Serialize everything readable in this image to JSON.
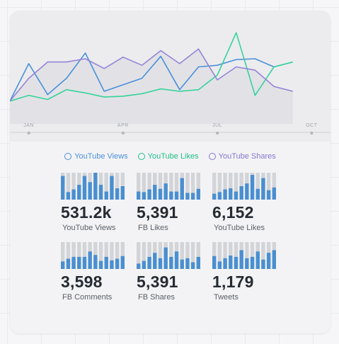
{
  "colors": {
    "views": "#4a90d9",
    "likes": "#35d39a",
    "shares": "#9583d8",
    "bar_fill": "#4a8fd0",
    "bar_track": "#d2d4d8"
  },
  "chart_data": [
    {
      "type": "line",
      "x": [
        0,
        1,
        2,
        3,
        4,
        5,
        6,
        7,
        8,
        9,
        10,
        11,
        12,
        13,
        14,
        15
      ],
      "x_tick_positions": [
        1.0,
        6.0,
        11.0,
        16.0
      ],
      "x_tick_labels": [
        "JAN",
        "APR",
        "JUL",
        "OCT"
      ],
      "xlim": [
        0,
        17
      ],
      "ylim": [
        0,
        100
      ],
      "grid": false,
      "legend_position": "bottom",
      "series": [
        {
          "name": "YouTube Views",
          "color": "#4a90d9",
          "values": [
            28,
            74,
            36,
            56,
            87,
            40,
            48,
            56,
            83,
            42,
            70,
            72,
            79,
            80,
            70,
            76
          ]
        },
        {
          "name": "YouTube Likes",
          "color": "#35d39a",
          "values": [
            28,
            35,
            30,
            42,
            38,
            33,
            34,
            37,
            43,
            40,
            42,
            60,
            112,
            35,
            70,
            76
          ]
        },
        {
          "name": "YouTube Shares",
          "color": "#9583d8",
          "values": [
            28,
            56,
            76,
            76,
            80,
            68,
            82,
            72,
            90,
            74,
            92,
            54,
            70,
            66,
            46,
            40
          ]
        }
      ]
    },
    {
      "type": "bar",
      "ylim": [
        0,
        100
      ],
      "tiles": [
        {
          "value_text": "531.2k",
          "label": "YouTube Views",
          "values": [
            88,
            28,
            38,
            55,
            88,
            65,
            100,
            55,
            30,
            88,
            42,
            50
          ]
        },
        {
          "value_text": "5,391",
          "label": "FB Likes",
          "values": [
            30,
            28,
            38,
            55,
            40,
            60,
            30,
            30,
            80,
            25,
            25,
            40
          ]
        },
        {
          "value_text": "6,152",
          "label": "YouTube Likes",
          "values": [
            22,
            28,
            38,
            42,
            30,
            50,
            60,
            92,
            40,
            80,
            35,
            45
          ]
        },
        {
          "value_text": "3,598",
          "label": "FB Comments",
          "values": [
            28,
            38,
            45,
            45,
            45,
            65,
            52,
            30,
            45,
            32,
            38,
            48
          ]
        },
        {
          "value_text": "5,391",
          "label": "FB Shares",
          "values": [
            20,
            30,
            45,
            60,
            40,
            80,
            45,
            65,
            35,
            40,
            25,
            45
          ]
        },
        {
          "value_text": "1,179",
          "label": "Tweets",
          "values": [
            48,
            28,
            40,
            50,
            45,
            70,
            40,
            45,
            65,
            35,
            60,
            70
          ]
        }
      ]
    }
  ]
}
